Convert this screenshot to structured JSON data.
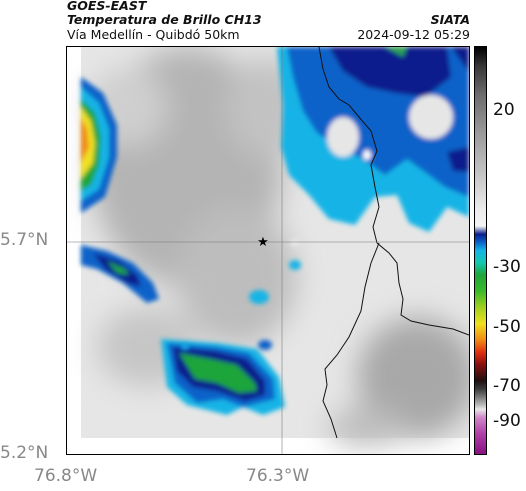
{
  "header": {
    "satellite": "GOES-EAST",
    "product": "Temperatura de Brillo CH13",
    "region": "Vía Medellín - Quibdó 50km",
    "agency": "SIATA",
    "datetime": "2024-09-12 05:29"
  },
  "axes": {
    "lat_labels": [
      "5.7°N",
      "5.2°N"
    ],
    "lon_labels": [
      "76.8°W",
      "76.3°W"
    ]
  },
  "colorbar": {
    "ticks": [
      "20",
      "-30",
      "-50",
      "-70",
      "-90"
    ]
  },
  "marker": {
    "icon": "star-icon"
  },
  "colors": {
    "cold_blue": "#0a1e8c",
    "mid_blue": "#0b62c9",
    "cyan": "#14b4e6",
    "green": "#1fa53b",
    "yellow": "#f0e020",
    "orange": "#f08a14",
    "gray_warm": "#c8c8c8"
  }
}
